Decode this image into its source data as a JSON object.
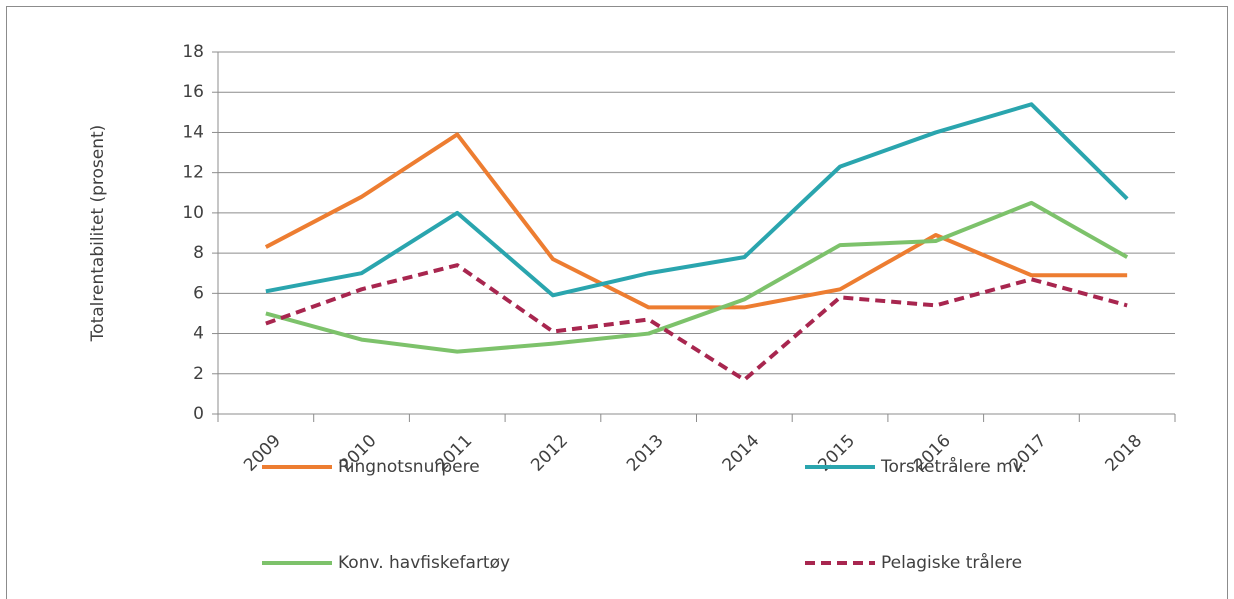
{
  "chart_data": {
    "type": "line",
    "ylabel": "Totalrentabilitet (prosent)",
    "categories": [
      "2009",
      "2010",
      "2011",
      "2012",
      "2013",
      "2014",
      "2015",
      "2016",
      "2017",
      "2018"
    ],
    "series": [
      {
        "name": "Ringnotsnurpere",
        "color": "#ed7d31",
        "values": [
          8.3,
          10.8,
          13.9,
          7.7,
          5.3,
          5.3,
          6.2,
          8.9,
          6.9,
          6.9
        ]
      },
      {
        "name": "Torsketrålere mv.",
        "color": "#2aa5ae",
        "values": [
          6.1,
          7.0,
          10.0,
          5.9,
          7.0,
          7.8,
          12.3,
          14.0,
          15.4,
          10.7
        ]
      },
      {
        "name": "Konv. havfiskefartøy",
        "color": "#7dc26b",
        "values": [
          5.0,
          3.7,
          3.1,
          3.5,
          4.0,
          5.7,
          8.4,
          8.6,
          10.5,
          7.8
        ]
      },
      {
        "name": "Pelagiske trålere",
        "color": "#a8264f",
        "dashed": true,
        "values": [
          4.5,
          6.2,
          7.4,
          4.1,
          4.7,
          1.7,
          5.8,
          5.4,
          6.7,
          5.4
        ]
      }
    ],
    "ylim": [
      0,
      18
    ],
    "yticks": [
      0,
      2,
      4,
      6,
      8,
      10,
      12,
      14,
      16,
      18
    ],
    "grid": true
  }
}
